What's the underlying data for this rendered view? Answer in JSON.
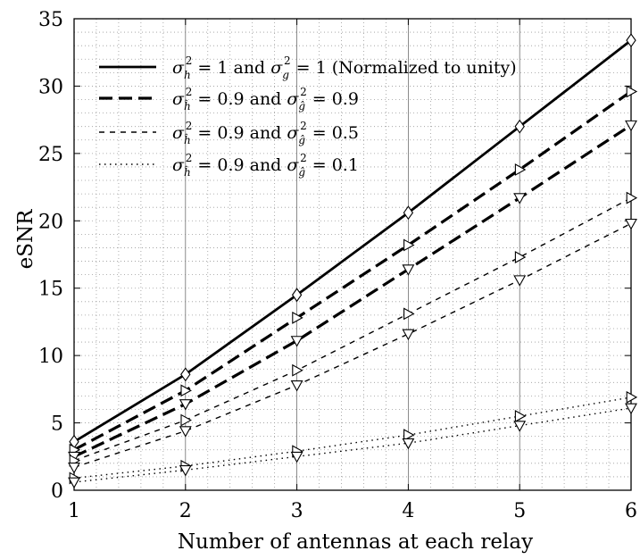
{
  "chart_data": {
    "type": "line",
    "xlabel": "Number of antennas at each relay",
    "ylabel": "eSNR",
    "xlim": [
      1,
      6
    ],
    "ylim": [
      0,
      35
    ],
    "xticks": [
      "1",
      "2",
      "3",
      "4",
      "5",
      "6"
    ],
    "yticks": [
      "0",
      "5",
      "10",
      "15",
      "20",
      "25",
      "30",
      "35"
    ],
    "grid": true,
    "legend_position": "top-left",
    "x": [
      1,
      2,
      3,
      4,
      5,
      6
    ],
    "series": [
      {
        "name": "σ²_h = 1 and σ²_g = 1 (Normalized to unity)",
        "style": "solid",
        "marker": "diamond",
        "values": [
          3.6,
          8.6,
          14.5,
          20.6,
          27.0,
          33.4
        ]
      },
      {
        "name": "σ²_ĥ = 0.9 and σ²_ĝ = 0.9",
        "style": "dashed",
        "values": [
          3.0,
          7.4,
          12.8,
          18.2,
          23.8,
          29.6
        ],
        "values_b": [
          2.5,
          6.4,
          11.1,
          16.4,
          21.7,
          27.1
        ]
      },
      {
        "name": "σ²_ĥ = 0.9 and σ²_ĝ = 0.5",
        "style": "densely-dashed",
        "values": [
          2.2,
          5.2,
          8.9,
          13.1,
          17.3,
          21.7
        ],
        "values_b": [
          1.7,
          4.4,
          7.8,
          11.6,
          15.6,
          19.8
        ]
      },
      {
        "name": "σ²_ĥ = 0.9 and σ²_ĝ = 0.1",
        "style": "dotted",
        "values": [
          0.9,
          1.8,
          2.9,
          4.1,
          5.5,
          6.9
        ],
        "values_b": [
          0.6,
          1.5,
          2.5,
          3.5,
          4.8,
          6.1
        ]
      }
    ]
  },
  "legend": {
    "l1_a": "σ",
    "l1_a_sub": "h",
    "l1_a_sup": "2",
    "l1_b": " = 1 and ",
    "l1_c": "σ",
    "l1_c_sub": "g",
    "l1_c_sup": "2",
    "l1_d": " = 1 (Normalized to unity)",
    "l2_a": "σ",
    "l2_a_sub": "ĥ",
    "l2_a_sup": "2",
    "l2_b": " = 0.9 and ",
    "l2_c": "σ",
    "l2_c_sub": "ĝ",
    "l2_c_sup": "2",
    "l2_d": " = 0.9",
    "l3_a": "σ",
    "l3_a_sub": "ĥ",
    "l3_a_sup": "2",
    "l3_b": " = 0.9 and ",
    "l3_c": "σ",
    "l3_c_sub": "ĝ",
    "l3_c_sup": "2",
    "l3_d": " = 0.5",
    "l4_a": "σ",
    "l4_a_sub": "ĥ",
    "l4_a_sup": "2",
    "l4_b": " = 0.9 and ",
    "l4_c": "σ",
    "l4_c_sub": "ĝ",
    "l4_c_sup": "2",
    "l4_d": " = 0.1"
  }
}
